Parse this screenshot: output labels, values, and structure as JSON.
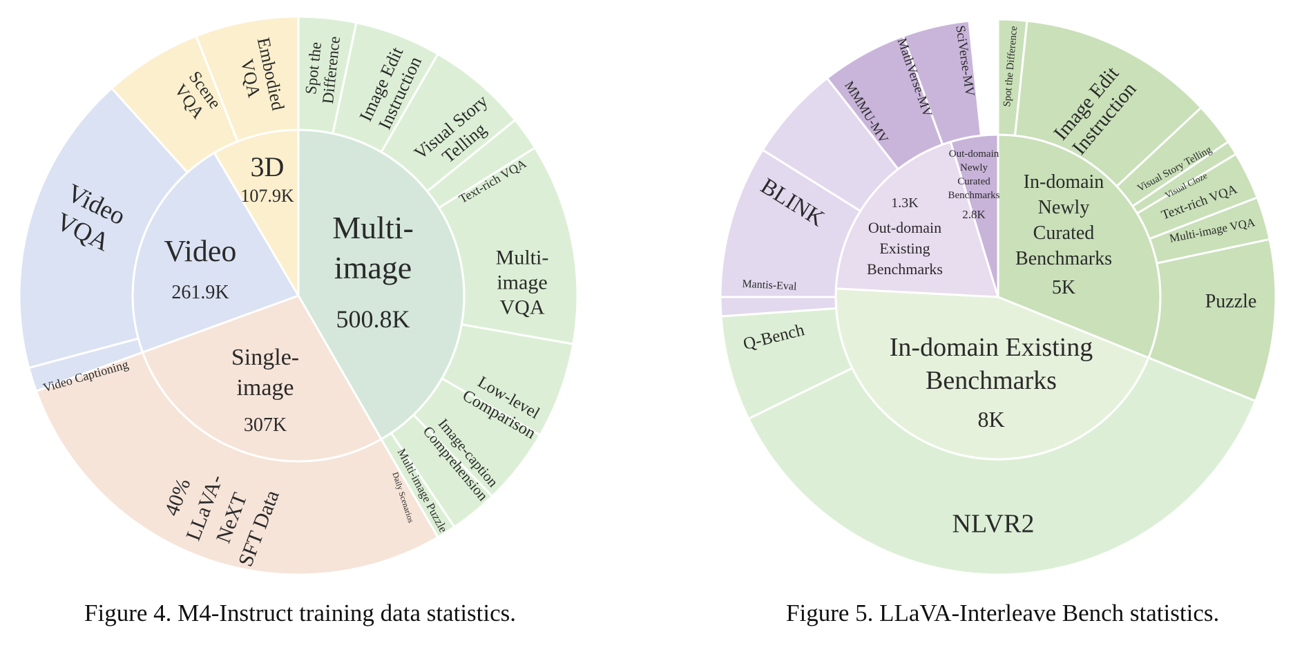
{
  "chart_data": [
    {
      "type": "sunburst",
      "caption": "Figure 4. M4-Instruct training data statistics.",
      "inner": [
        {
          "id": "multi",
          "lines": [
            "Multi-",
            "image"
          ],
          "value_label": "500.8K",
          "value": 500.8,
          "color": "#d4e7da"
        },
        {
          "id": "single",
          "lines": [
            "Single-",
            "image"
          ],
          "value_label": "307K",
          "value": 307,
          "color": "#f6e4d9"
        },
        {
          "id": "video",
          "lines": [
            "Video"
          ],
          "value_label": "261.9K",
          "value": 261.9,
          "color": "#dbe2f3"
        },
        {
          "id": "3d",
          "lines": [
            "3D"
          ],
          "value_label": "107.9K",
          "value": 107.9,
          "color": "#fbefcd"
        }
      ],
      "outer": [
        {
          "parent": "multi",
          "lines": [
            "Spot the",
            "Difference"
          ],
          "color": "#dcefd6"
        },
        {
          "parent": "multi",
          "lines": [
            "Image Edit",
            "Instruction"
          ],
          "color": "#dcefd6"
        },
        {
          "parent": "multi",
          "lines": [
            "Visual Story",
            "Telling"
          ],
          "color": "#dcefd6"
        },
        {
          "parent": "multi",
          "lines": [
            "Text-rich VQA"
          ],
          "color": "#dcefd6"
        },
        {
          "parent": "multi",
          "lines": [
            "Multi-",
            "image",
            "VQA"
          ],
          "color": "#dcefd6"
        },
        {
          "parent": "multi",
          "lines": [
            "Low-level",
            "Comparison"
          ],
          "color": "#dcefd6"
        },
        {
          "parent": "multi",
          "lines": [
            "Image-caption",
            "Comprehension"
          ],
          "color": "#dcefd6"
        },
        {
          "parent": "multi",
          "lines": [
            "Multi-image Puzzle"
          ],
          "color": "#dcefd6"
        },
        {
          "parent": "multi",
          "lines": [
            "Daily Scenarios"
          ],
          "color": "#dcefd6"
        },
        {
          "parent": "single",
          "lines": [
            "40%",
            "LLaVA-",
            "NeXT",
            "SFT Data"
          ],
          "color": "#f6e4d9"
        },
        {
          "parent": "video",
          "lines": [
            "Video Captioning"
          ],
          "color": "#dbe2f3"
        },
        {
          "parent": "video",
          "lines": [
            "Video",
            "VQA"
          ],
          "color": "#dbe2f3"
        },
        {
          "parent": "3d",
          "lines": [
            "Scene",
            "VQA"
          ],
          "color": "#fbefcd"
        },
        {
          "parent": "3d",
          "lines": [
            "Embodied",
            "VQA"
          ],
          "color": "#fbefcd"
        }
      ]
    },
    {
      "type": "sunburst",
      "caption": "Figure 5. LLaVA-Interleave Bench statistics.",
      "inner": [
        {
          "id": "in_new",
          "lines": [
            "In-domain",
            "Newly",
            "Curated",
            "Benchmarks"
          ],
          "value_label": "5K",
          "value": 5,
          "color": "#c9e0b9"
        },
        {
          "id": "in_exist",
          "lines": [
            "In-domain Existing",
            "Benchmarks"
          ],
          "value_label": "8K",
          "value": 8,
          "color": "#e6f1dc"
        },
        {
          "id": "out_exist",
          "lines": [
            "Out-domain",
            "Existing",
            "Benchmarks"
          ],
          "value_label": "1.3K",
          "value": 1.3,
          "color": "#e8dcef"
        },
        {
          "id": "out_new",
          "lines": [
            "Out-domain",
            "Newly",
            "Curated",
            "Benchmarks"
          ],
          "value_label": "2.8K",
          "value": 2.8,
          "color": "#c8b3d9"
        }
      ],
      "outer": [
        {
          "parent": "in_new",
          "lines": [
            "Spot the Difference"
          ],
          "color": "#c9e0b9"
        },
        {
          "parent": "in_new",
          "lines": [
            "Image Edit",
            "Instruction"
          ],
          "color": "#c9e0b9"
        },
        {
          "parent": "in_new",
          "lines": [
            "Visual Story Telling"
          ],
          "color": "#c9e0b9"
        },
        {
          "parent": "in_new",
          "lines": [
            "Visual Cloze"
          ],
          "color": "#c9e0b9"
        },
        {
          "parent": "in_new",
          "lines": [
            "Text-rich VQA"
          ],
          "color": "#c9e0b9"
        },
        {
          "parent": "in_new",
          "lines": [
            "Multi-image VQA"
          ],
          "color": "#c9e0b9"
        },
        {
          "parent": "in_new",
          "lines": [
            "Puzzle"
          ],
          "color": "#c9e0b9"
        },
        {
          "parent": "in_exist",
          "lines": [
            "NLVR2"
          ],
          "color": "#dcefd6"
        },
        {
          "parent": "in_exist",
          "lines": [
            "Q-Bench"
          ],
          "color": "#dcefd6"
        },
        {
          "parent": "out_exist",
          "lines": [
            "Mantis-Eval"
          ],
          "color": "#e3d9ee"
        },
        {
          "parent": "out_exist",
          "lines": [
            "BLINK"
          ],
          "color": "#e3d9ee"
        },
        {
          "parent": "out_exist",
          "lines": [
            "MMMU-MV"
          ],
          "color": "#e3d9ee"
        },
        {
          "parent": "out_new",
          "lines": [
            "MathVerse-MV"
          ],
          "color": "#c9b5da"
        },
        {
          "parent": "out_new",
          "lines": [
            "SciVerse-MV"
          ],
          "color": "#c9b5da"
        }
      ]
    }
  ]
}
